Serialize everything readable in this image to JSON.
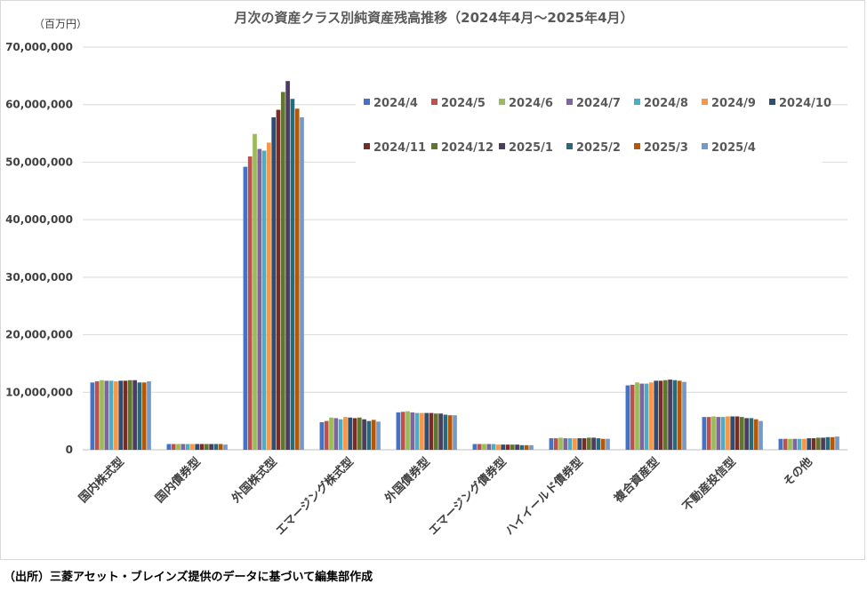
{
  "chart_data": {
    "type": "bar",
    "title": "月次の資産クラス別純資産残高推移（2024年4月～2025年4月）",
    "unit_label": "（百万円）",
    "ylim": [
      0,
      70000000
    ],
    "yticks": [
      "0",
      "10,000,000",
      "20,000,000",
      "30,000,000",
      "40,000,000",
      "50,000,000",
      "60,000,000",
      "70,000,000"
    ],
    "ytick_values": [
      0,
      10000000,
      20000000,
      30000000,
      40000000,
      50000000,
      60000000,
      70000000
    ],
    "grid": true,
    "legend_position": "top-right",
    "categories": [
      "国内株式型",
      "国内債券型",
      "外国株式型",
      "エマージング株式型",
      "外国債券型",
      "エマージング債券型",
      "ハイイールド債券型",
      "複合資産型",
      "不動産投信型",
      "その他"
    ],
    "series": [
      {
        "name": "2024/4",
        "color": "#4472C4",
        "values": [
          11700000,
          1000000,
          49200000,
          4800000,
          6500000,
          1000000,
          2000000,
          11200000,
          5700000,
          1900000
        ]
      },
      {
        "name": "2024/5",
        "color": "#C0504D",
        "values": [
          11900000,
          1000000,
          51000000,
          5000000,
          6600000,
          1000000,
          2000000,
          11300000,
          5700000,
          1900000
        ]
      },
      {
        "name": "2024/6",
        "color": "#9BBB59",
        "values": [
          12100000,
          1000000,
          54900000,
          5600000,
          6700000,
          1000000,
          2100000,
          11700000,
          5800000,
          1900000
        ]
      },
      {
        "name": "2024/7",
        "color": "#8064A2",
        "values": [
          12000000,
          1000000,
          52300000,
          5500000,
          6500000,
          1000000,
          2000000,
          11500000,
          5700000,
          1900000
        ]
      },
      {
        "name": "2024/8",
        "color": "#4BACC6",
        "values": [
          12000000,
          1000000,
          52000000,
          5300000,
          6400000,
          1000000,
          2000000,
          11500000,
          5700000,
          1900000
        ]
      },
      {
        "name": "2024/9",
        "color": "#F79646",
        "values": [
          11900000,
          1000000,
          53400000,
          5700000,
          6400000,
          900000,
          2000000,
          11700000,
          5800000,
          1900000
        ]
      },
      {
        "name": "2024/10",
        "color": "#2C4D75",
        "values": [
          12000000,
          1000000,
          57800000,
          5600000,
          6400000,
          900000,
          2000000,
          12000000,
          5800000,
          2000000
        ]
      },
      {
        "name": "2024/11",
        "color": "#772C2A",
        "values": [
          12000000,
          1000000,
          59100000,
          5500000,
          6400000,
          900000,
          2000000,
          12000000,
          5800000,
          2000000
        ]
      },
      {
        "name": "2024/12",
        "color": "#5F7530",
        "values": [
          12100000,
          1000000,
          62200000,
          5600000,
          6300000,
          900000,
          2100000,
          12100000,
          5700000,
          2100000
        ]
      },
      {
        "name": "2025/1",
        "color": "#4D3B62",
        "values": [
          12100000,
          1000000,
          64100000,
          5300000,
          6300000,
          900000,
          2100000,
          12200000,
          5500000,
          2100000
        ]
      },
      {
        "name": "2025/2",
        "color": "#276A7C",
        "values": [
          11700000,
          1000000,
          61000000,
          5000000,
          6100000,
          800000,
          2000000,
          12100000,
          5500000,
          2200000
        ]
      },
      {
        "name": "2025/3",
        "color": "#B65708",
        "values": [
          11700000,
          1000000,
          59300000,
          5200000,
          6000000,
          800000,
          1900000,
          12000000,
          5300000,
          2200000
        ]
      },
      {
        "name": "2025/4",
        "color": "#729ACA",
        "values": [
          11900000,
          900000,
          57800000,
          4900000,
          6000000,
          800000,
          1900000,
          11800000,
          5000000,
          2300000
        ]
      }
    ]
  },
  "source_note": "（出所）三菱アセット・ブレインズ提供のデータに基づいて編集部作成"
}
